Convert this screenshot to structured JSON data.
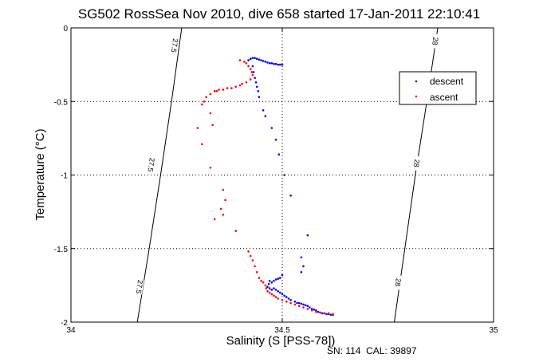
{
  "chart_data": {
    "type": "scatter",
    "title": "SG502 RossSea Nov 2010, dive 658 started 17-Jan-2011 22:10:41",
    "xlabel": "Salinity (S [PSS-78])",
    "ylabel": "Temperature (°C)",
    "xlim": [
      34,
      35
    ],
    "ylim": [
      -2,
      0
    ],
    "xticks": [
      "34",
      "34.5",
      "35"
    ],
    "yticks": [
      "0",
      "-0.5",
      "-1",
      "-1.5",
      "-2"
    ],
    "grid": true,
    "legend_position": "top-right",
    "footer": "SN: 114  CAL: 39897",
    "colors": {
      "descent": "#0000ff",
      "ascent": "#ff0000",
      "isopycnal": "#000000"
    },
    "isopycnals": [
      {
        "label": "27.5",
        "label_positions": [
          [
            34.245,
            -0.12
          ],
          [
            34.19,
            -0.93
          ],
          [
            34.162,
            -1.76
          ]
        ],
        "points": [
          [
            34.157,
            -2.0
          ],
          [
            34.185,
            -1.5
          ],
          [
            34.212,
            -1.0
          ],
          [
            34.238,
            -0.5
          ],
          [
            34.262,
            0.0
          ]
        ]
      },
      {
        "label": "28",
        "label_positions": [
          [
            34.862,
            -0.09
          ],
          [
            34.818,
            -0.92
          ],
          [
            34.774,
            -1.73
          ]
        ],
        "points": [
          [
            34.765,
            -2.0
          ],
          [
            34.79,
            -1.5
          ],
          [
            34.815,
            -1.0
          ],
          [
            34.842,
            -0.5
          ],
          [
            34.868,
            0.0
          ]
        ]
      }
    ],
    "series": [
      {
        "name": "descent",
        "points": [
          [
            34.42,
            -0.22
          ],
          [
            34.425,
            -0.21
          ],
          [
            34.43,
            -0.205
          ],
          [
            34.435,
            -0.205
          ],
          [
            34.44,
            -0.21
          ],
          [
            34.445,
            -0.215
          ],
          [
            34.45,
            -0.22
          ],
          [
            34.455,
            -0.225
          ],
          [
            34.46,
            -0.23
          ],
          [
            34.465,
            -0.235
          ],
          [
            34.47,
            -0.24
          ],
          [
            34.475,
            -0.24
          ],
          [
            34.48,
            -0.245
          ],
          [
            34.485,
            -0.245
          ],
          [
            34.49,
            -0.25
          ],
          [
            34.495,
            -0.25
          ],
          [
            34.5,
            -0.25
          ],
          [
            34.43,
            -0.26
          ],
          [
            34.432,
            -0.3
          ],
          [
            34.435,
            -0.34
          ],
          [
            34.438,
            -0.37
          ],
          [
            34.44,
            -0.4
          ],
          [
            34.443,
            -0.43
          ],
          [
            34.445,
            -0.47
          ],
          [
            34.455,
            -0.56
          ],
          [
            34.46,
            -0.6
          ],
          [
            34.475,
            -0.68
          ],
          [
            34.485,
            -0.76
          ],
          [
            34.492,
            -0.86
          ],
          [
            34.505,
            -1.0
          ],
          [
            34.52,
            -1.14
          ],
          [
            34.56,
            -1.41
          ],
          [
            34.545,
            -1.56
          ],
          [
            34.55,
            -1.62
          ],
          [
            34.545,
            -1.66
          ],
          [
            34.5,
            -1.68
          ],
          [
            34.495,
            -1.7
          ],
          [
            34.49,
            -1.705
          ],
          [
            34.485,
            -1.71
          ],
          [
            34.48,
            -1.72
          ],
          [
            34.475,
            -1.73
          ],
          [
            34.47,
            -1.72
          ],
          [
            34.468,
            -1.74
          ],
          [
            34.465,
            -1.76
          ],
          [
            34.47,
            -1.77
          ],
          [
            34.475,
            -1.78
          ],
          [
            34.48,
            -1.77
          ],
          [
            34.485,
            -1.78
          ],
          [
            34.49,
            -1.79
          ],
          [
            34.495,
            -1.8
          ],
          [
            34.5,
            -1.81
          ],
          [
            34.505,
            -1.82
          ],
          [
            34.51,
            -1.83
          ],
          [
            34.515,
            -1.84
          ],
          [
            34.52,
            -1.85
          ],
          [
            34.53,
            -1.86
          ],
          [
            34.535,
            -1.87
          ],
          [
            34.54,
            -1.87
          ],
          [
            34.545,
            -1.875
          ],
          [
            34.55,
            -1.88
          ],
          [
            34.555,
            -1.885
          ],
          [
            34.56,
            -1.89
          ],
          [
            34.565,
            -1.9
          ],
          [
            34.57,
            -1.91
          ],
          [
            34.575,
            -1.915
          ],
          [
            34.58,
            -1.92
          ],
          [
            34.585,
            -1.93
          ],
          [
            34.59,
            -1.935
          ],
          [
            34.595,
            -1.94
          ],
          [
            34.6,
            -1.94
          ],
          [
            34.605,
            -1.945
          ],
          [
            34.61,
            -1.945
          ],
          [
            34.615,
            -1.95
          ],
          [
            34.62,
            -1.95
          ]
        ]
      },
      {
        "name": "ascent",
        "points": [
          [
            34.4,
            -0.22
          ],
          [
            34.41,
            -0.23
          ],
          [
            34.415,
            -0.24
          ],
          [
            34.42,
            -0.26
          ],
          [
            34.425,
            -0.28
          ],
          [
            34.428,
            -0.3
          ],
          [
            34.43,
            -0.32
          ],
          [
            34.425,
            -0.35
          ],
          [
            34.415,
            -0.37
          ],
          [
            34.405,
            -0.38
          ],
          [
            34.4,
            -0.39
          ],
          [
            34.39,
            -0.4
          ],
          [
            34.38,
            -0.41
          ],
          [
            34.37,
            -0.41
          ],
          [
            34.36,
            -0.42
          ],
          [
            34.35,
            -0.42
          ],
          [
            34.345,
            -0.43
          ],
          [
            34.34,
            -0.43
          ],
          [
            34.33,
            -0.45
          ],
          [
            34.32,
            -0.47
          ],
          [
            34.315,
            -0.5
          ],
          [
            34.31,
            -0.52
          ],
          [
            34.33,
            -0.58
          ],
          [
            34.335,
            -0.66
          ],
          [
            34.3,
            -0.68
          ],
          [
            34.31,
            -0.79
          ],
          [
            34.33,
            -0.95
          ],
          [
            34.36,
            -1.1
          ],
          [
            34.365,
            -1.17
          ],
          [
            34.355,
            -1.23
          ],
          [
            34.36,
            -1.27
          ],
          [
            34.34,
            -1.3
          ],
          [
            34.39,
            -1.38
          ],
          [
            34.42,
            -1.52
          ],
          [
            34.425,
            -1.55
          ],
          [
            34.43,
            -1.58
          ],
          [
            34.435,
            -1.62
          ],
          [
            34.44,
            -1.66
          ],
          [
            34.445,
            -1.7
          ],
          [
            34.45,
            -1.72
          ],
          [
            34.455,
            -1.73
          ],
          [
            34.46,
            -1.75
          ],
          [
            34.462,
            -1.77
          ],
          [
            34.465,
            -1.79
          ],
          [
            34.47,
            -1.8
          ],
          [
            34.475,
            -1.81
          ],
          [
            34.48,
            -1.82
          ],
          [
            34.485,
            -1.83
          ],
          [
            34.49,
            -1.84
          ],
          [
            34.5,
            -1.85
          ],
          [
            34.51,
            -1.86
          ],
          [
            34.52,
            -1.87
          ],
          [
            34.53,
            -1.88
          ],
          [
            34.54,
            -1.89
          ],
          [
            34.55,
            -1.9
          ],
          [
            34.56,
            -1.91
          ],
          [
            34.57,
            -1.92
          ],
          [
            34.58,
            -1.93
          ],
          [
            34.59,
            -1.935
          ],
          [
            34.6,
            -1.94
          ],
          [
            34.61,
            -1.94
          ],
          [
            34.62,
            -1.945
          ]
        ]
      }
    ]
  }
}
